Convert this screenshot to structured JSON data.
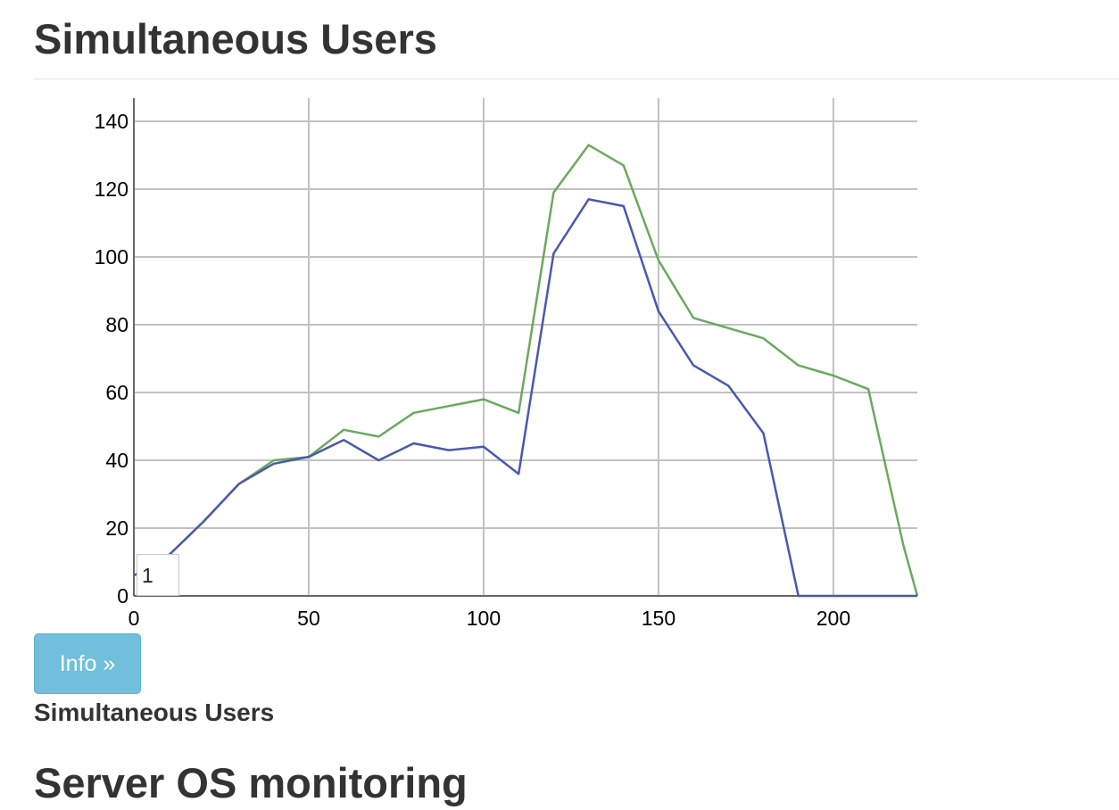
{
  "page": {
    "title": "Simultaneous Users",
    "next_section_title": "Server OS monitoring"
  },
  "chart_controls": {
    "range_value": "1"
  },
  "info_button": {
    "label": "Info »"
  },
  "caption": "Simultaneous Users",
  "colors": {
    "series_green": "#6aaa5e",
    "series_blue": "#4a58b0",
    "grid": "#c2c2c2",
    "axis": "#666666",
    "button_bg": "#71bfdc"
  },
  "chart_data": {
    "type": "line",
    "title": "",
    "xlabel": "",
    "ylabel": "",
    "xlim": [
      0,
      224
    ],
    "ylim": [
      0,
      140
    ],
    "grid": true,
    "legend": "none",
    "x_ticks": [
      0,
      50,
      100,
      150,
      200
    ],
    "y_ticks": [
      0,
      20,
      40,
      60,
      80,
      100,
      120,
      140
    ],
    "series": [
      {
        "color": "#6aaa5e",
        "points": [
          [
            0,
            6
          ],
          [
            10,
            12
          ],
          [
            20,
            22
          ],
          [
            30,
            33
          ],
          [
            40,
            40
          ],
          [
            50,
            41
          ],
          [
            60,
            49
          ],
          [
            70,
            47
          ],
          [
            80,
            54
          ],
          [
            90,
            56
          ],
          [
            100,
            58
          ],
          [
            110,
            54
          ],
          [
            120,
            119
          ],
          [
            130,
            133
          ],
          [
            140,
            127
          ],
          [
            150,
            99
          ],
          [
            160,
            82
          ],
          [
            170,
            79
          ],
          [
            180,
            76
          ],
          [
            190,
            68
          ],
          [
            200,
            65
          ],
          [
            210,
            61
          ],
          [
            220,
            15
          ],
          [
            224,
            0
          ]
        ]
      },
      {
        "color": "#4a58b0",
        "points": [
          [
            0,
            6
          ],
          [
            10,
            12
          ],
          [
            20,
            22
          ],
          [
            30,
            33
          ],
          [
            40,
            39
          ],
          [
            50,
            41
          ],
          [
            60,
            46
          ],
          [
            70,
            40
          ],
          [
            80,
            45
          ],
          [
            90,
            43
          ],
          [
            100,
            44
          ],
          [
            110,
            36
          ],
          [
            120,
            101
          ],
          [
            130,
            117
          ],
          [
            140,
            115
          ],
          [
            150,
            84
          ],
          [
            160,
            68
          ],
          [
            170,
            62
          ],
          [
            180,
            48
          ],
          [
            190,
            0
          ],
          [
            200,
            0
          ],
          [
            210,
            0
          ],
          [
            220,
            0
          ],
          [
            224,
            0
          ]
        ]
      }
    ]
  }
}
